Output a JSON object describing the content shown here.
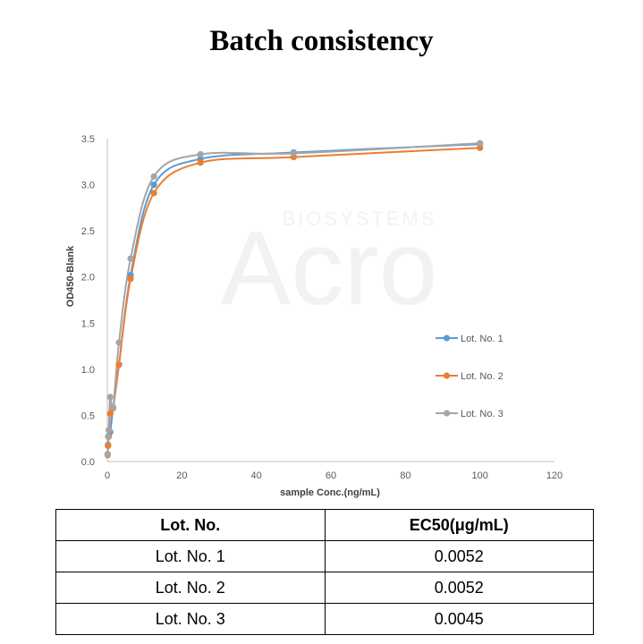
{
  "title": "Batch consistency",
  "watermark": {
    "brand": "Acro",
    "subtitle": "BIOSYSTEMS"
  },
  "chart_data": {
    "type": "scatter",
    "xlabel": "sample Conc.(ng/mL)",
    "ylabel": "OD450-Blank",
    "xlim": [
      0,
      120
    ],
    "ylim": [
      0,
      3.5
    ],
    "xticks": [
      0,
      20,
      40,
      60,
      80,
      100,
      120
    ],
    "yticks": [
      "0.0",
      "0.5",
      "1.0",
      "1.5",
      "2.0",
      "2.5",
      "3.0",
      "3.5"
    ],
    "legend_position": "right",
    "grid": false,
    "series": [
      {
        "name": "Lot. No. 1",
        "color": "#5b9bd5",
        "x": [
          0.1,
          0.2,
          0.39,
          0.78,
          1.56,
          3.13,
          6.25,
          12.5,
          25,
          50,
          100
        ],
        "y": [
          0.08,
          0.18,
          0.28,
          0.32,
          0.58,
          1.05,
          2.02,
          3.0,
          3.28,
          3.35,
          3.44
        ]
      },
      {
        "name": "Lot. No. 2",
        "color": "#ed7d31",
        "x": [
          0.1,
          0.2,
          0.39,
          0.78,
          1.56,
          3.13,
          6.25,
          12.5,
          25,
          50,
          100
        ],
        "y": [
          0.07,
          0.17,
          0.27,
          0.52,
          0.58,
          1.05,
          1.98,
          2.91,
          3.24,
          3.3,
          3.4
        ]
      },
      {
        "name": "Lot. No. 3",
        "color": "#a5a5a5",
        "x": [
          0.1,
          0.2,
          0.39,
          0.78,
          1.56,
          3.13,
          6.25,
          12.5,
          25,
          50,
          100
        ],
        "y": [
          0.08,
          0.27,
          0.34,
          0.7,
          0.59,
          1.29,
          2.2,
          3.09,
          3.33,
          3.34,
          3.45
        ]
      }
    ]
  },
  "table": {
    "headers": [
      "Lot. No.",
      "EC50(μg/mL)"
    ],
    "rows": [
      [
        "Lot. No. 1",
        "0.0052"
      ],
      [
        "Lot. No. 2",
        "0.0052"
      ],
      [
        "Lot. No. 3",
        "0.0045"
      ]
    ]
  }
}
